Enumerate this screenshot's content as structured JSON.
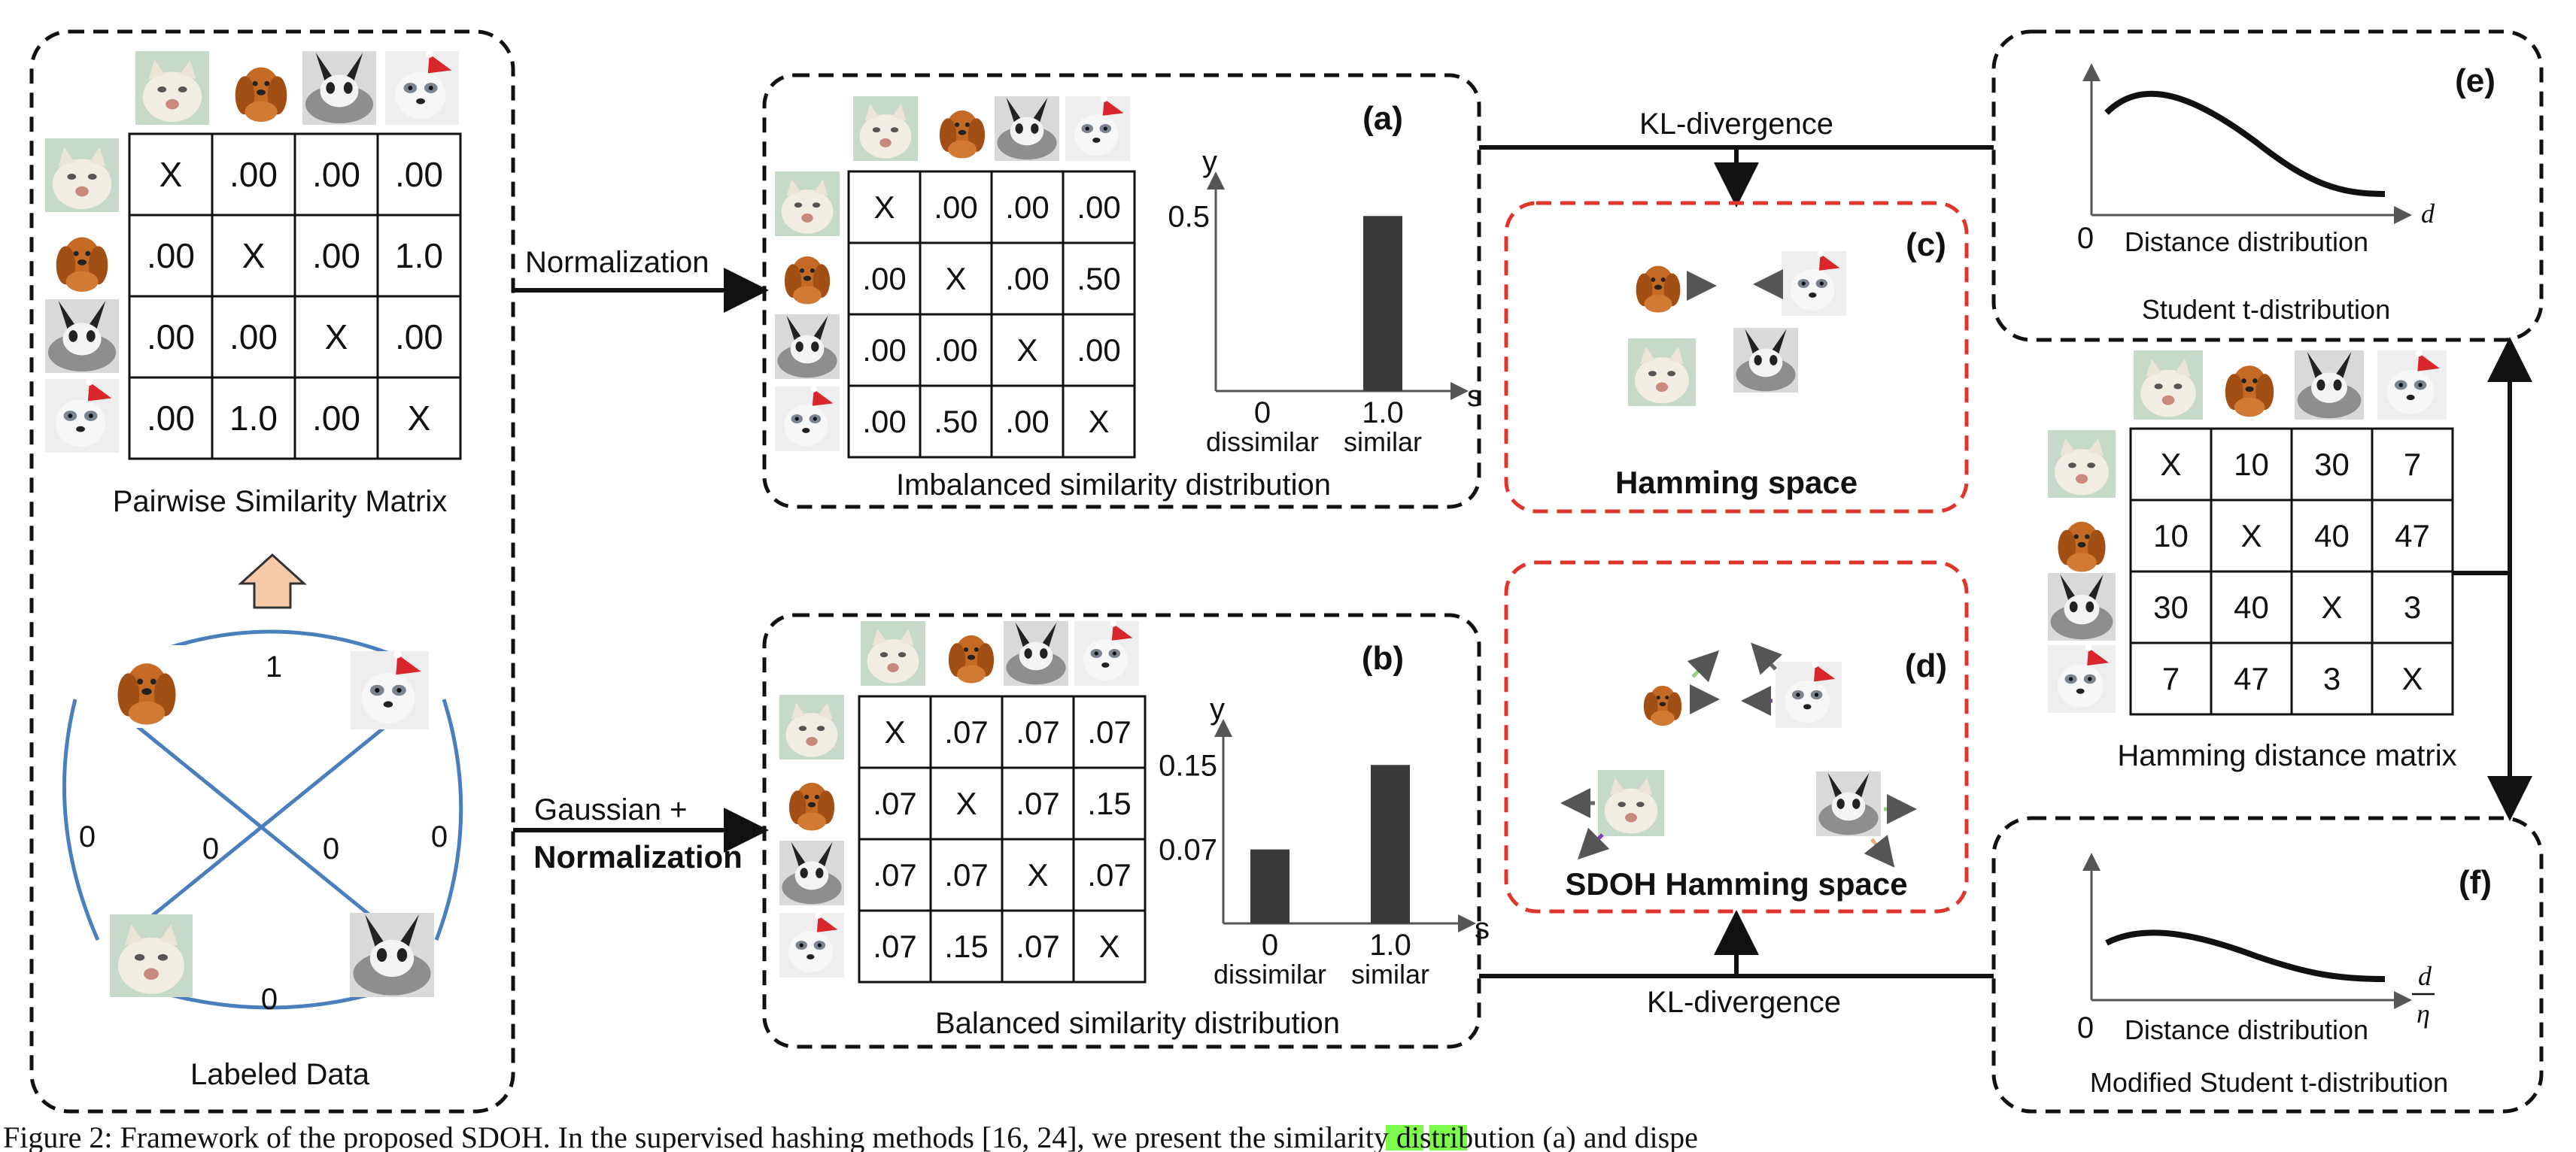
{
  "labels": {
    "pairwise_title": "Pairwise Similarity Matrix",
    "labeled_data": "Labeled Data",
    "normalization": "Normalization",
    "gaussian": "Gaussian +",
    "normalization2": "Normalization",
    "kl_top": "KL-divergence",
    "kl_bottom": "KL-divergence",
    "imbalanced": "Imbalanced similarity distribution",
    "balanced": "Balanced similarity distribution",
    "hamming_space": "Hamming space",
    "sdoh_space": "SDOH Hamming space",
    "student_t": "Student t-distribution",
    "mod_student_t": "Modified Student t-distribution",
    "hamming_matrix": "Hamming distance matrix",
    "dist_dist": "Distance distribution",
    "dist_dist2": "Distance distribution",
    "zero_e": "0",
    "zero_f": "0",
    "d_e": "d",
    "d_f": "d",
    "eta_f": "η"
  },
  "tags": {
    "a": "(a)",
    "b": "(b)",
    "c": "(c)",
    "d": "(d)",
    "e": "(e)",
    "f": "(f)"
  },
  "graph_edges": {
    "top": "1",
    "left": "0",
    "right": "0",
    "bottom": "0",
    "cross_left": "0",
    "cross_right": "0"
  },
  "pairwise_matrix": [
    [
      "X",
      ".00",
      ".00",
      ".00"
    ],
    [
      ".00",
      "X",
      ".00",
      "1.0"
    ],
    [
      ".00",
      ".00",
      "X",
      ".00"
    ],
    [
      ".00",
      "1.0",
      ".00",
      "X"
    ]
  ],
  "matrix_a": [
    [
      "X",
      ".00",
      ".00",
      ".00"
    ],
    [
      ".00",
      "X",
      ".00",
      ".50"
    ],
    [
      ".00",
      ".00",
      "X",
      ".00"
    ],
    [
      ".00",
      ".50",
      ".00",
      "X"
    ]
  ],
  "matrix_b": [
    [
      "X",
      ".07",
      ".07",
      ".07"
    ],
    [
      ".07",
      "X",
      ".07",
      ".15"
    ],
    [
      ".07",
      ".07",
      "X",
      ".07"
    ],
    [
      ".07",
      ".15",
      ".07",
      "X"
    ]
  ],
  "hamming_matrix": [
    [
      "X",
      "10",
      "30",
      "7"
    ],
    [
      "10",
      "X",
      "40",
      "47"
    ],
    [
      "30",
      "40",
      "X",
      "3"
    ],
    [
      "7",
      "47",
      "3",
      "X"
    ]
  ],
  "chart_data": [
    {
      "type": "bar",
      "categories": [
        "0",
        "1.0"
      ],
      "category_sublabels": [
        "dissimilar",
        "similar"
      ],
      "values": [
        0,
        0.5
      ],
      "yticks": [
        "0.5"
      ],
      "xlabel": "s",
      "ylabel": "y"
    },
    {
      "type": "bar",
      "categories": [
        "0",
        "1.0"
      ],
      "category_sublabels": [
        "dissimilar",
        "similar"
      ],
      "values": [
        0.07,
        0.15
      ],
      "yticks": [
        "0.15",
        "0.07"
      ],
      "xlabel": "s",
      "ylabel": "y"
    }
  ],
  "caption": {
    "text": "Figure 2:  Framework of the proposed SDOH. In the supervised hashing methods [16, 24], we present the similarity distribution (a) and dispe"
  },
  "colors": {
    "dashed_border": "#111111",
    "red_border": "#e0352b",
    "edge_blue": "#4a7fbd",
    "bar": "#3a3a3a",
    "up_arrow": "#f6c9a8"
  }
}
